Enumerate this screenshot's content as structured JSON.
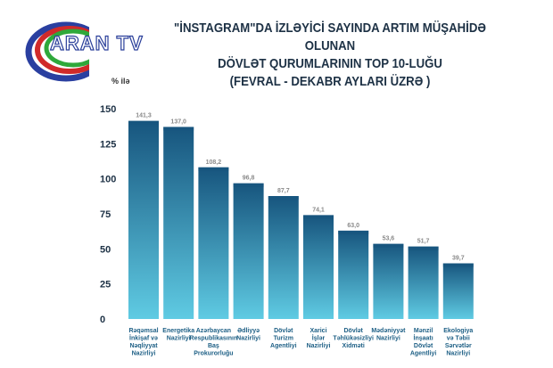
{
  "logo": {
    "text": "ARAN TV"
  },
  "title": [
    "\"İNSTAGRAM\"DA İZLƏYİCİ SAYINDA ARTIM MÜŞAHİDƏ OLUNAN",
    "DÖVLƏT QURUMLARININ TOP 10-LUĞU",
    "(FEVRAL - DEKABR AYLARI ÜZRƏ )"
  ],
  "chart_data": {
    "type": "bar",
    "title": "\"İNSTAGRAM\"DA İZLƏYİCİ SAYINDA ARTIM MÜŞAHİDƏ OLUNAN DÖVLƏT QURUMLARININ TOP 10-LUĞU (FEVRAL - DEKABR AYLARI ÜZRƏ )",
    "ylabel": "% ilə",
    "xlabel": "",
    "ylim": [
      0,
      150
    ],
    "yticks": [
      0,
      25,
      50,
      75,
      100,
      125,
      150
    ],
    "categories": [
      [
        "Rəqəmsal",
        "İnkişaf və",
        "Nəqliyyat",
        "Nazirliyi"
      ],
      [
        "Energetika",
        "Nazirliyi"
      ],
      [
        "Azərbaycan",
        "Respublikasının",
        "Baş",
        "Prokurorluğu"
      ],
      [
        "Ədliyyə",
        "Nazirliyi"
      ],
      [
        "Dövlət",
        "Turizm",
        "Agentliyi"
      ],
      [
        "Xarici",
        "İşlər",
        "Nazirliyi"
      ],
      [
        "Dövlət",
        "Təhlükəsizliyi",
        "Xidməti"
      ],
      [
        "Mədəniyyət",
        "Nazirliyi"
      ],
      [
        "Mənzil",
        "İnşaatı",
        "Dövlət",
        "Agentliyi"
      ],
      [
        "Ekologiya",
        "və Təbii",
        "Sərvətlər",
        "Nazirliyi"
      ]
    ],
    "values": [
      141.3,
      137.0,
      108.2,
      96.8,
      87.7,
      74.1,
      63.0,
      53.6,
      51.7,
      39.7
    ],
    "value_labels": [
      "141,3",
      "137,0",
      "108,2",
      "96,8",
      "87,7",
      "74,1",
      "63,0",
      "53,6",
      "51,7",
      "39,7"
    ],
    "colors": {
      "top": "#17557e",
      "bottom": "#5fcbe3"
    }
  }
}
